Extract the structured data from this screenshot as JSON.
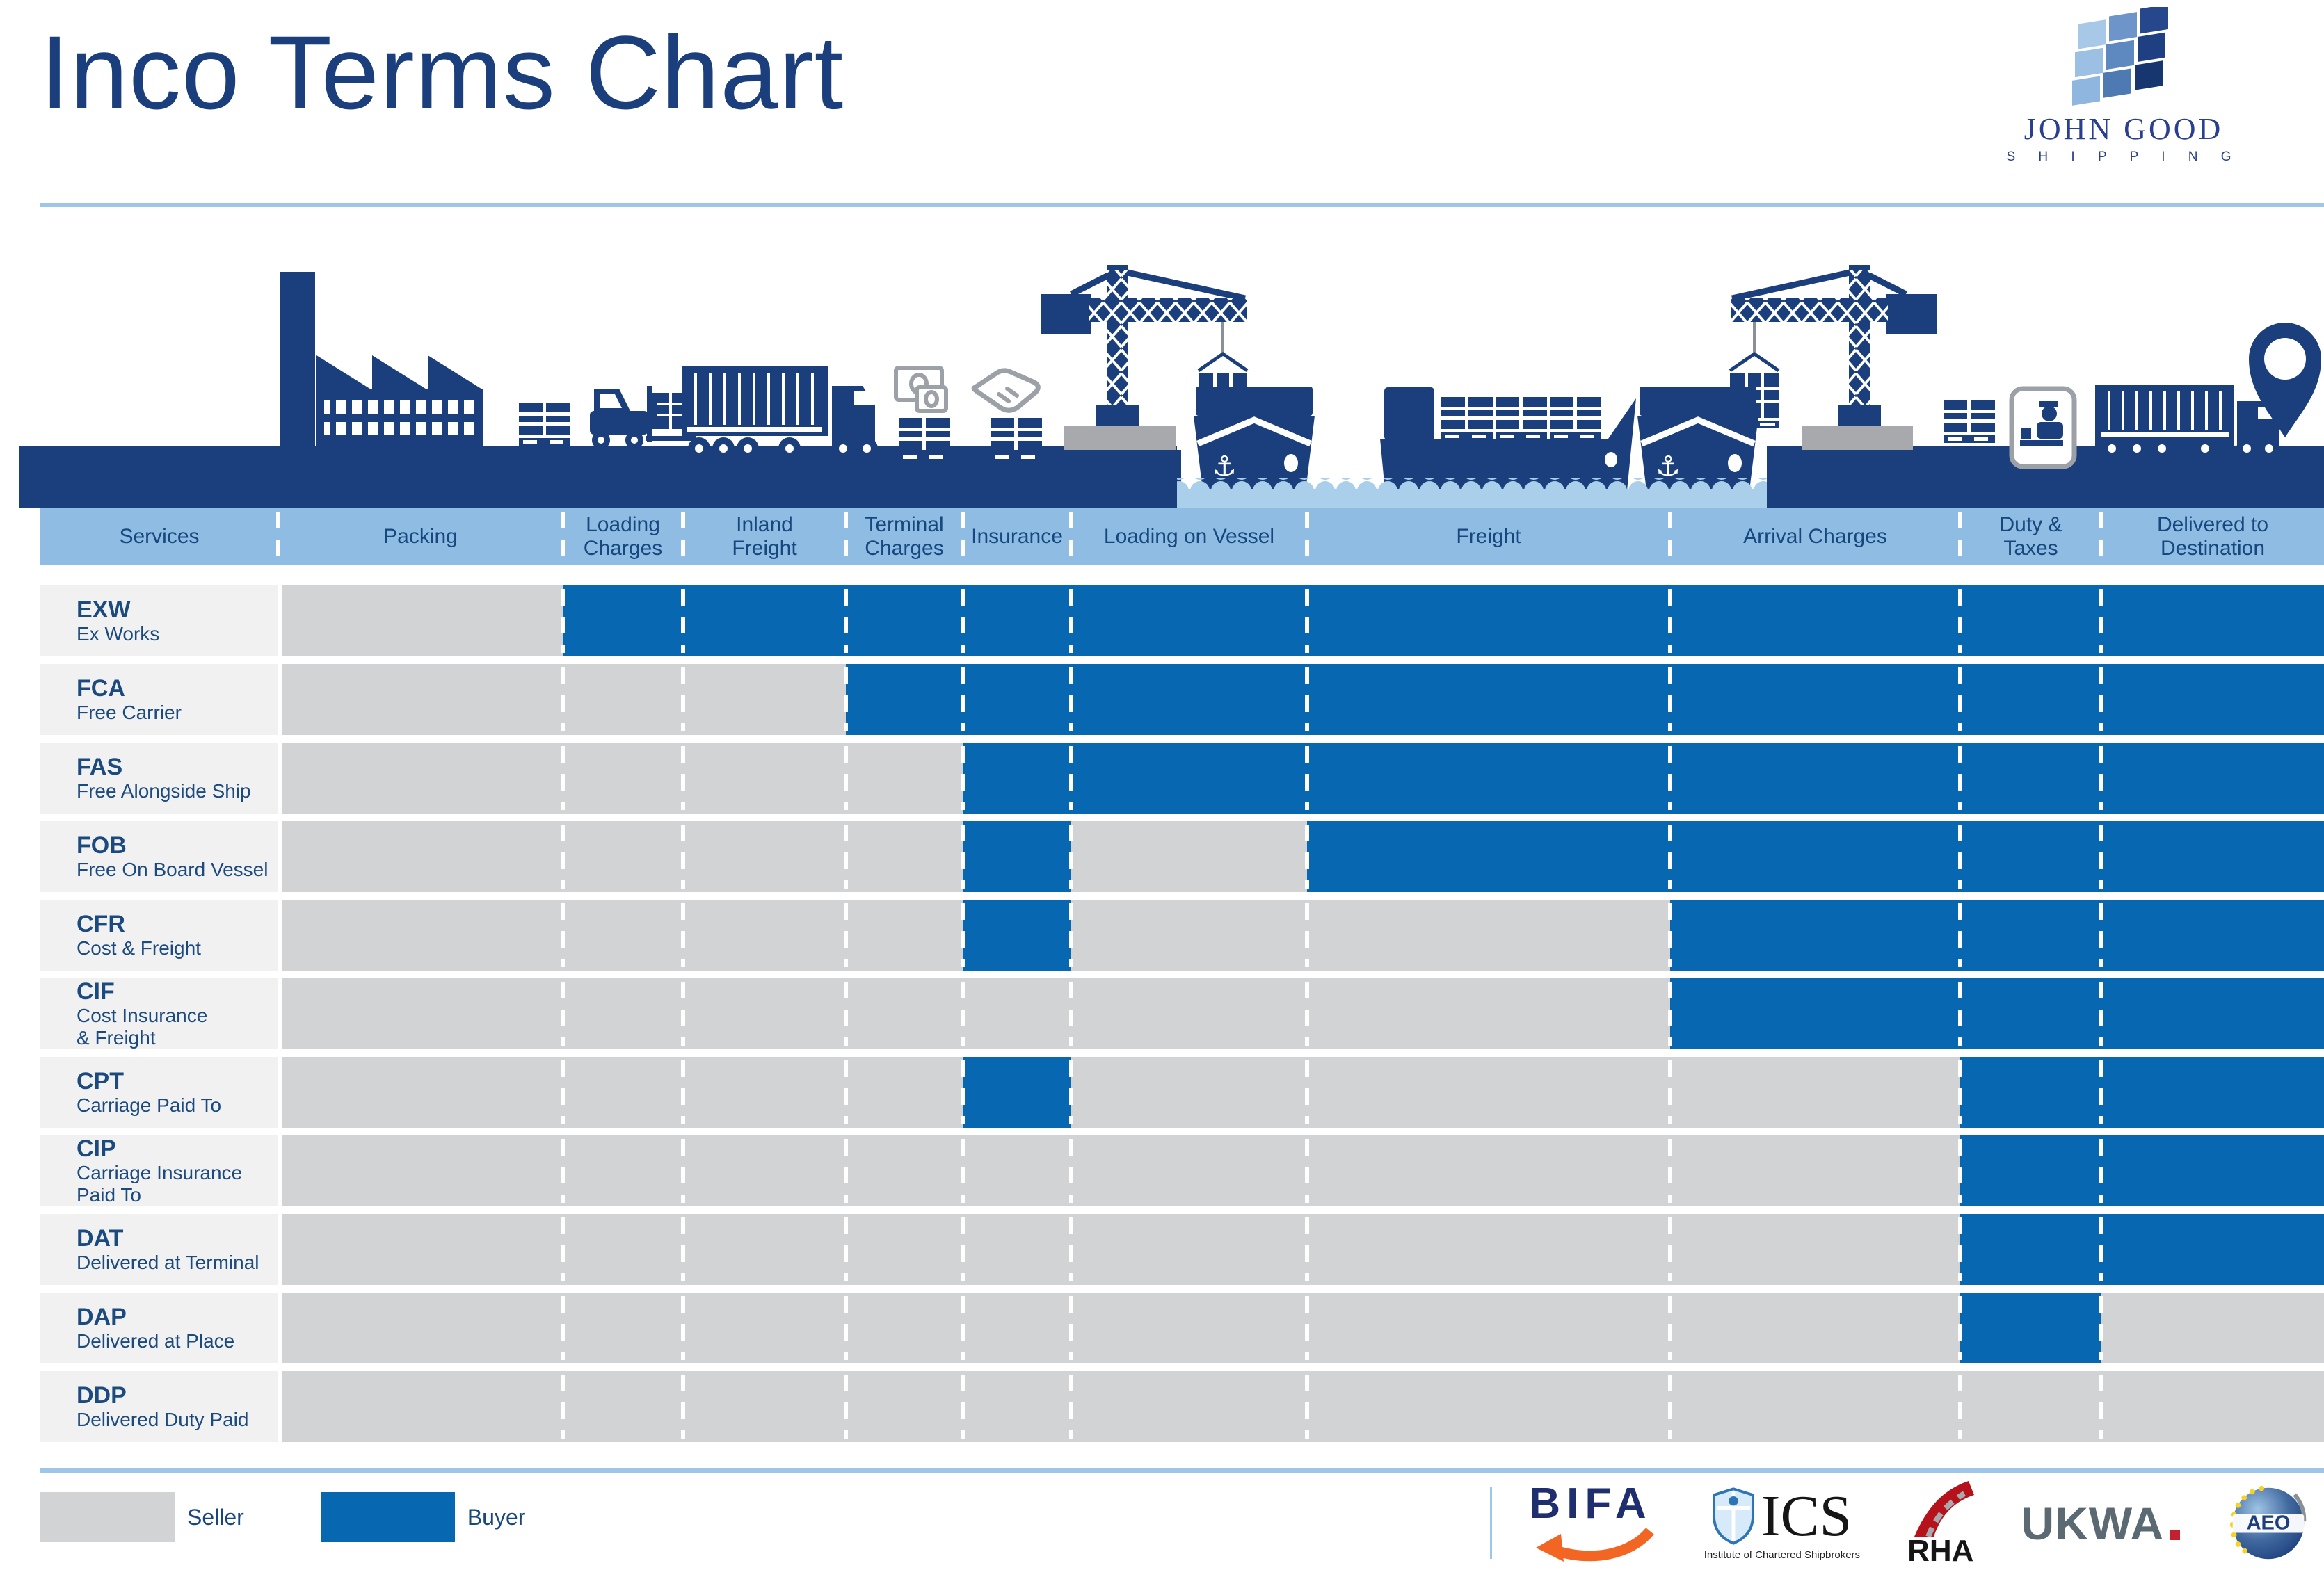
{
  "title": "Inco Terms Chart",
  "brand": {
    "name": "JOHN GOOD",
    "tagline": "S H I P P I N G"
  },
  "colors": {
    "seller_gray": "#d1d3d4",
    "buyer_blue": "#0768b1",
    "navy": "#1b3f7c",
    "band_bg": "#8fbce3",
    "band_text": "#17477f",
    "label_bg": "#f1f1f2",
    "label_text": "#1b4a7e",
    "water_blue": "#a9cfeb",
    "rule_blue": "#9dc6e8",
    "icon_gray": "#9ba1a7",
    "pedestal_gray": "#a7a9ac",
    "bifa_orange": "#f26522",
    "rha_red": "#b5121b",
    "ukwa_gray": "#5b6973"
  },
  "chart_data": {
    "type": "table",
    "title": "Inco Terms Chart",
    "columns": [
      "Services",
      "Packing",
      "Loading\nCharges",
      "Inland\nFreight",
      "Terminal\nCharges",
      "Insurance",
      "Loading on Vessel",
      "Freight",
      "Arrival Charges",
      "Duty &\nTaxes",
      "Delivered to\nDestination"
    ],
    "legend": {
      "seller_label": "Seller",
      "buyer_label": "Buyer"
    },
    "cell_values_meaning": "seller = cost borne by seller (grey cell), buyer = cost borne by buyer (blue cell)",
    "rows": [
      {
        "code": "EXW",
        "name": "Ex Works",
        "cells": [
          "seller",
          "buyer",
          "buyer",
          "buyer",
          "buyer",
          "buyer",
          "buyer",
          "buyer",
          "buyer",
          "buyer"
        ]
      },
      {
        "code": "FCA",
        "name": "Free Carrier",
        "cells": [
          "seller",
          "seller",
          "seller",
          "buyer",
          "buyer",
          "buyer",
          "buyer",
          "buyer",
          "buyer",
          "buyer"
        ]
      },
      {
        "code": "FAS",
        "name": "Free Alongside Ship",
        "cells": [
          "seller",
          "seller",
          "seller",
          "seller",
          "buyer",
          "buyer",
          "buyer",
          "buyer",
          "buyer",
          "buyer"
        ]
      },
      {
        "code": "FOB",
        "name": "Free On Board Vessel",
        "cells": [
          "seller",
          "seller",
          "seller",
          "seller",
          "buyer",
          "seller",
          "buyer",
          "buyer",
          "buyer",
          "buyer"
        ]
      },
      {
        "code": "CFR",
        "name": "Cost & Freight",
        "cells": [
          "seller",
          "seller",
          "seller",
          "seller",
          "buyer",
          "seller",
          "seller",
          "buyer",
          "buyer",
          "buyer"
        ]
      },
      {
        "code": "CIF",
        "name": "Cost Insurance\n& Freight",
        "cells": [
          "seller",
          "seller",
          "seller",
          "seller",
          "seller",
          "seller",
          "seller",
          "buyer",
          "buyer",
          "buyer"
        ]
      },
      {
        "code": "CPT",
        "name": "Carriage Paid To",
        "cells": [
          "seller",
          "seller",
          "seller",
          "seller",
          "buyer",
          "seller",
          "seller",
          "seller",
          "buyer",
          "buyer"
        ]
      },
      {
        "code": "CIP",
        "name": "Carriage Insurance\nPaid To",
        "cells": [
          "seller",
          "seller",
          "seller",
          "seller",
          "seller",
          "seller",
          "seller",
          "seller",
          "buyer",
          "buyer"
        ]
      },
      {
        "code": "DAT",
        "name": "Delivered at Terminal",
        "cells": [
          "seller",
          "seller",
          "seller",
          "seller",
          "seller",
          "seller",
          "seller",
          "seller",
          "buyer",
          "buyer"
        ]
      },
      {
        "code": "DAP",
        "name": "Delivered at Place",
        "cells": [
          "seller",
          "seller",
          "seller",
          "seller",
          "seller",
          "seller",
          "seller",
          "seller",
          "buyer",
          "seller"
        ]
      },
      {
        "code": "DDP",
        "name": "Delivered Duty Paid",
        "cells": [
          "seller",
          "seller",
          "seller",
          "seller",
          "seller",
          "seller",
          "seller",
          "seller",
          "seller",
          "seller"
        ]
      }
    ]
  },
  "footer": {
    "logos": [
      {
        "name": "BIFA"
      },
      {
        "name": "ICS",
        "caption": "Institute of Chartered Shipbrokers"
      },
      {
        "name": "RHA"
      },
      {
        "name": "UKWA"
      },
      {
        "name": "AEO"
      }
    ]
  },
  "illustration": {
    "icons": [
      "factory-icon",
      "pallet-stack-icon",
      "forklift-icon",
      "container-truck-icon",
      "money-icon",
      "handshake-icon",
      "tower-crane-icon",
      "container-hoist-icon",
      "cargo-ship-front-icon",
      "container-ship-icon",
      "customs-check-icon",
      "location-pin-icon"
    ]
  }
}
